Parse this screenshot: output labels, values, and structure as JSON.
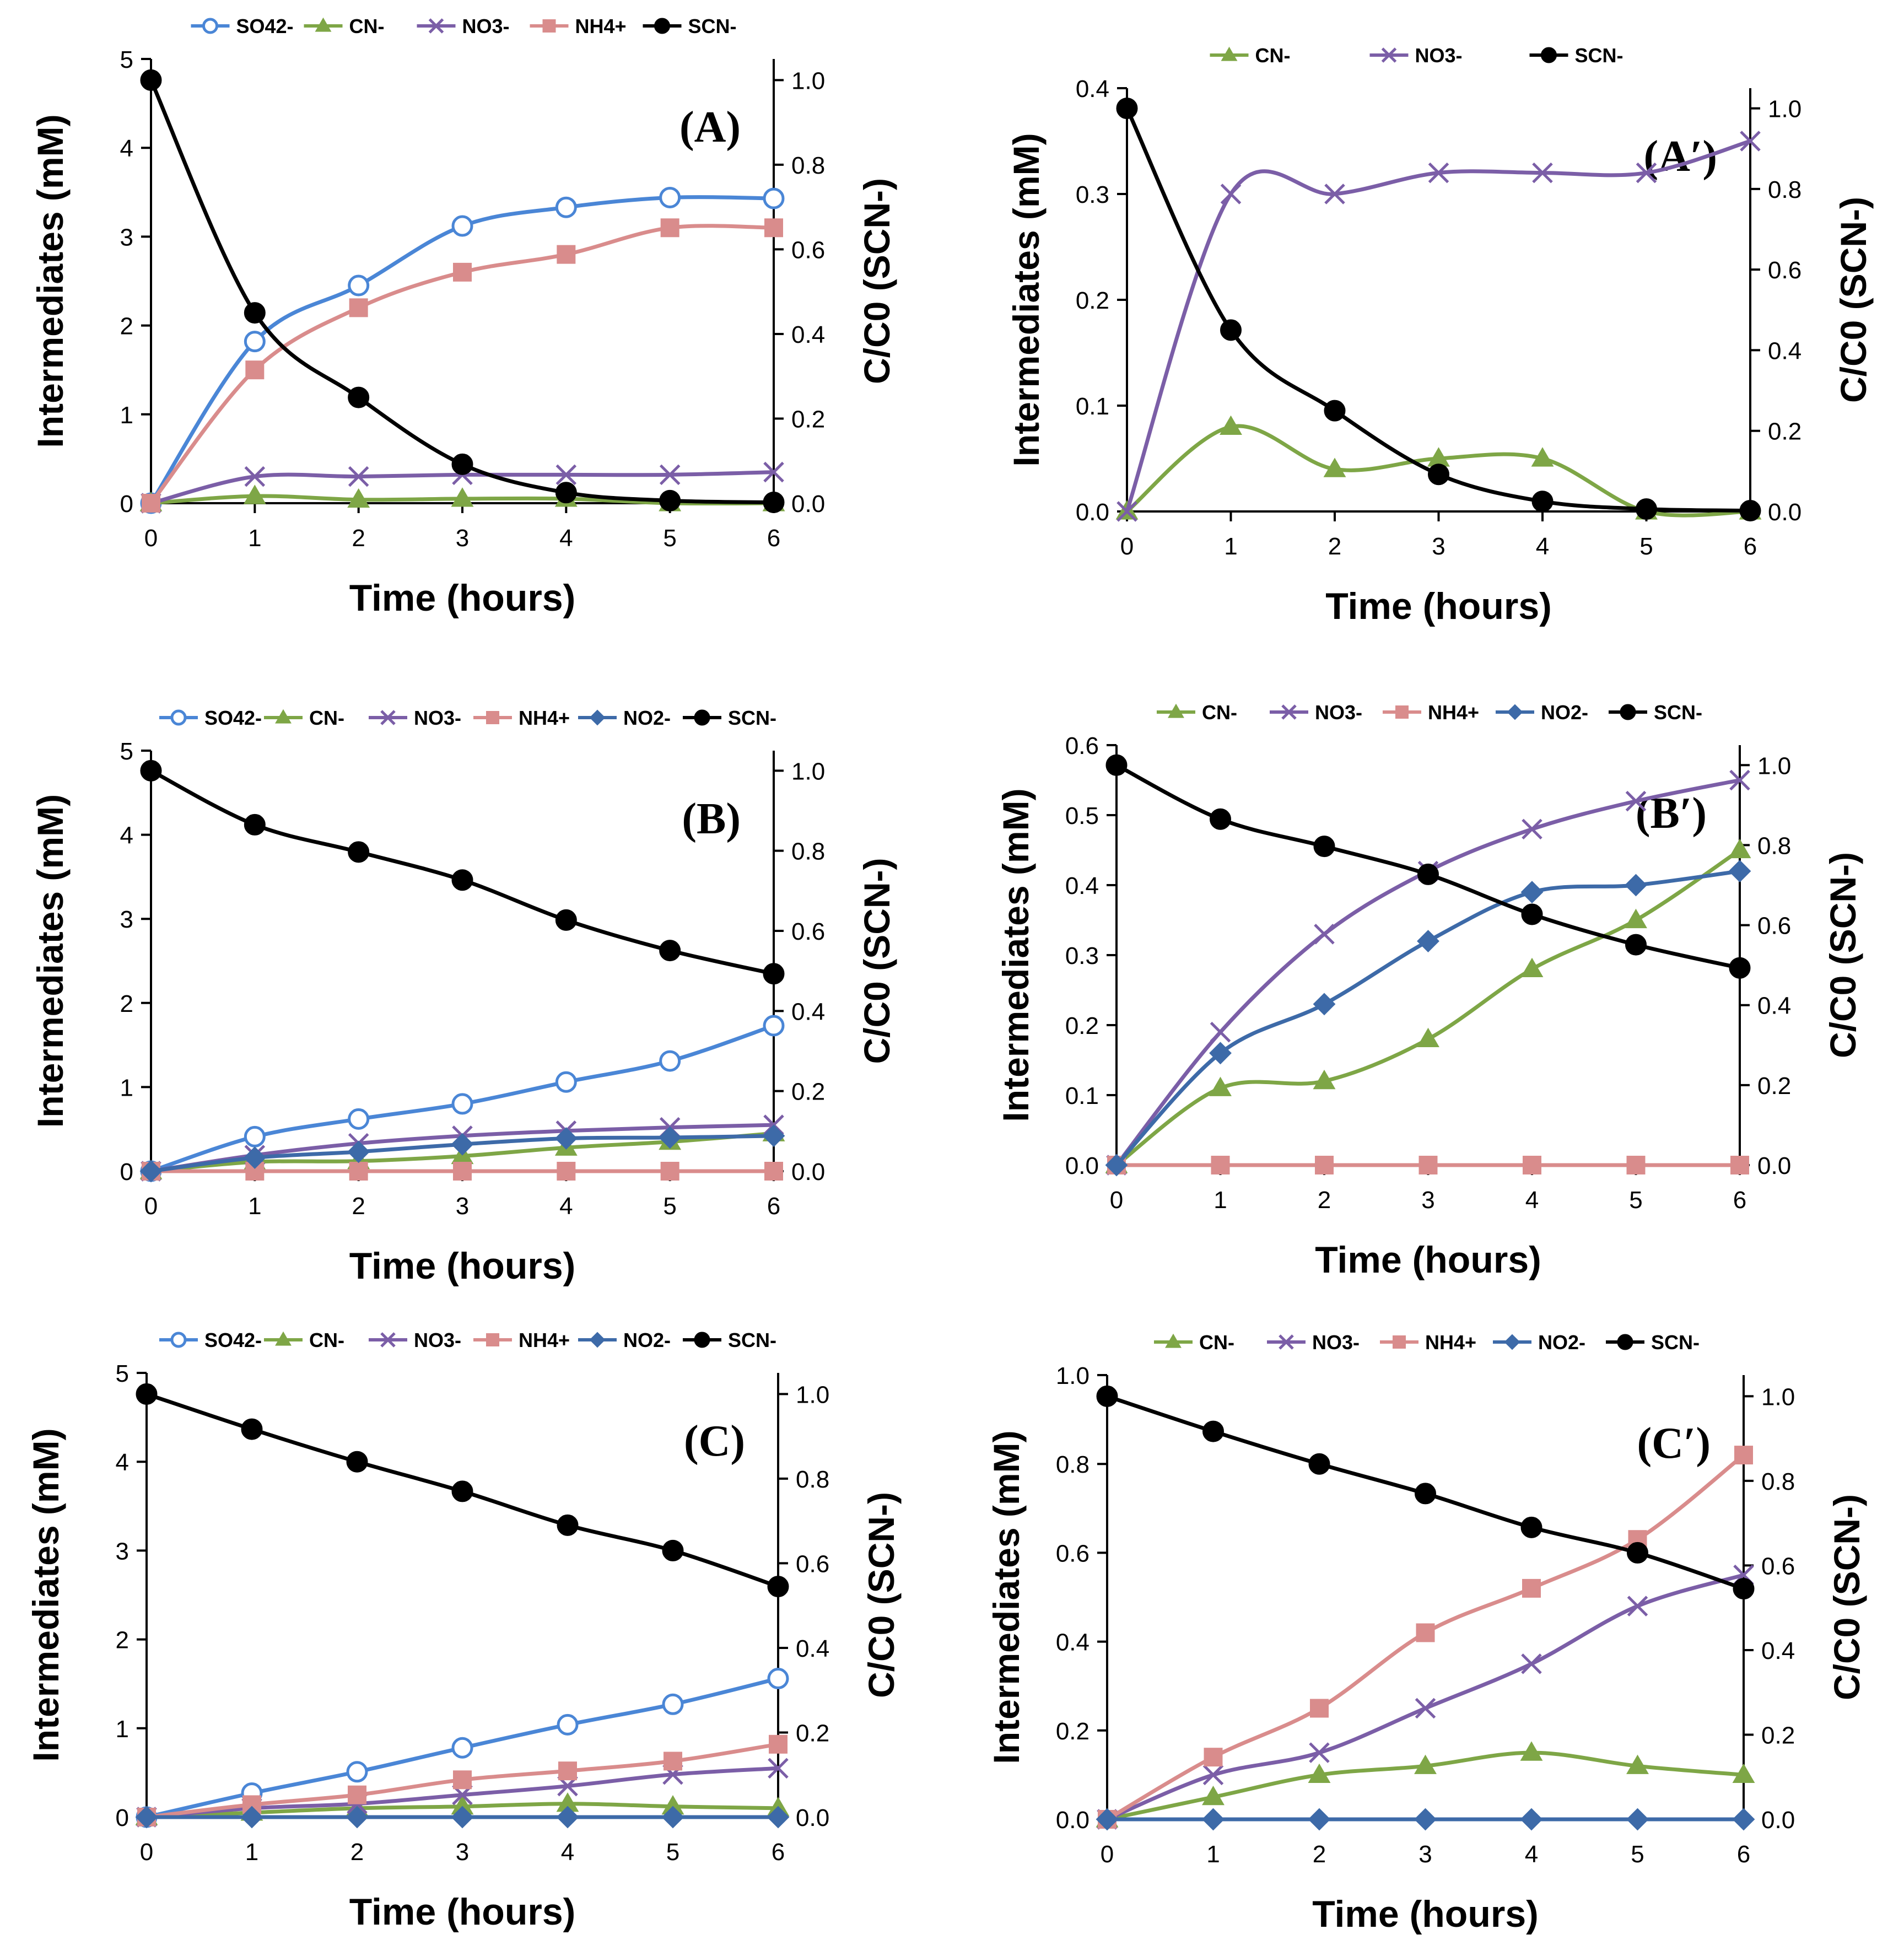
{
  "figure": {
    "caption": ""
  },
  "chart_data": [
    {
      "type": "line",
      "panel_label": "(A)",
      "xlabel": "Time (hours)",
      "ylabel": "Intermediates (mM)",
      "y2label": "C/C0 (SCN-)",
      "x": [
        0,
        1,
        2,
        3,
        4,
        5,
        6
      ],
      "xlim": [
        0,
        6
      ],
      "x_ticks": [
        "0",
        "1",
        "2",
        "3",
        "4",
        "5",
        "6"
      ],
      "ylim": [
        0,
        5
      ],
      "y_ticks": [
        "0",
        "1",
        "2",
        "3",
        "4",
        "5"
      ],
      "y2lim": [
        0,
        1.05
      ],
      "y2_ticks": [
        "0.0",
        "0.2",
        "0.4",
        "0.6",
        "0.8",
        "1.0"
      ],
      "series": [
        {
          "name": "SO42-",
          "axis": "left",
          "color": "#4a86d6",
          "marker": "circle-open",
          "values": [
            0,
            1.82,
            2.45,
            3.12,
            3.33,
            3.44,
            3.43
          ]
        },
        {
          "name": "CN-",
          "axis": "left",
          "color": "#7ea646",
          "marker": "triangle",
          "values": [
            0,
            0.08,
            0.04,
            0.05,
            0.05,
            0,
            0
          ]
        },
        {
          "name": "NO3-",
          "axis": "left",
          "color": "#7b5ea7",
          "marker": "x",
          "values": [
            0,
            0.3,
            0.3,
            0.32,
            0.32,
            0.32,
            0.35
          ]
        },
        {
          "name": "NH4+",
          "axis": "left",
          "color": "#d98c8c",
          "marker": "square",
          "values": [
            0,
            1.5,
            2.2,
            2.6,
            2.8,
            3.1,
            3.1
          ]
        },
        {
          "name": "SCN-",
          "axis": "right",
          "color": "#000000",
          "marker": "circle",
          "values": [
            1.0,
            0.45,
            0.25,
            0.092,
            0.025,
            0.006,
            0.002
          ]
        }
      ]
    },
    {
      "type": "line",
      "panel_label": "(A′)",
      "xlabel": "Time (hours)",
      "ylabel": "Intermediates (mM)",
      "y2label": "C/C0 (SCN-)",
      "x": [
        0,
        1,
        2,
        3,
        4,
        5,
        6
      ],
      "xlim": [
        0,
        6
      ],
      "x_ticks": [
        "0",
        "1",
        "2",
        "3",
        "4",
        "5",
        "6"
      ],
      "ylim": [
        0,
        0.4
      ],
      "y_ticks": [
        "0.0",
        "0.1",
        "0.2",
        "0.3",
        "0.4"
      ],
      "y2lim": [
        0,
        1.05
      ],
      "y2_ticks": [
        "0.0",
        "0.2",
        "0.4",
        "0.6",
        "0.8",
        "1.0"
      ],
      "series": [
        {
          "name": "CN-",
          "axis": "left",
          "color": "#7ea646",
          "marker": "triangle",
          "values": [
            0,
            0.08,
            0.04,
            0.05,
            0.05,
            0,
            0
          ]
        },
        {
          "name": "NO3-",
          "axis": "left",
          "color": "#7b5ea7",
          "marker": "x",
          "values": [
            0,
            0.3,
            0.3,
            0.32,
            0.32,
            0.32,
            0.35
          ]
        },
        {
          "name": "SCN-",
          "axis": "right",
          "color": "#000000",
          "marker": "circle",
          "values": [
            1.0,
            0.45,
            0.25,
            0.092,
            0.025,
            0.006,
            0.002
          ]
        }
      ]
    },
    {
      "type": "line",
      "panel_label": "(B)",
      "xlabel": "Time (hours)",
      "ylabel": "Intermediates (mM)",
      "y2label": "C/C0 (SCN-)",
      "x": [
        0,
        1,
        2,
        3,
        4,
        5,
        6
      ],
      "xlim": [
        0,
        6
      ],
      "x_ticks": [
        "0",
        "1",
        "2",
        "3",
        "4",
        "5",
        "6"
      ],
      "ylim": [
        0,
        5
      ],
      "y_ticks": [
        "0",
        "1",
        "2",
        "3",
        "4",
        "5"
      ],
      "y2lim": [
        0,
        1.05
      ],
      "y2_ticks": [
        "0.0",
        "0.2",
        "0.4",
        "0.6",
        "0.8",
        "1.0"
      ],
      "series": [
        {
          "name": "SO42-",
          "axis": "left",
          "color": "#4a86d6",
          "marker": "circle-open",
          "values": [
            0,
            0.41,
            0.62,
            0.8,
            1.06,
            1.31,
            1.73
          ]
        },
        {
          "name": "CN-",
          "axis": "left",
          "color": "#7ea646",
          "marker": "triangle",
          "values": [
            0,
            0.11,
            0.12,
            0.18,
            0.28,
            0.35,
            0.45
          ]
        },
        {
          "name": "NO3-",
          "axis": "left",
          "color": "#7b5ea7",
          "marker": "x",
          "values": [
            0,
            0.19,
            0.33,
            0.42,
            0.48,
            0.52,
            0.55
          ]
        },
        {
          "name": "NH4+",
          "axis": "left",
          "color": "#d98c8c",
          "marker": "square",
          "values": [
            0,
            0,
            0,
            0,
            0,
            0,
            0
          ]
        },
        {
          "name": "NO2-",
          "axis": "left",
          "color": "#3d6aa8",
          "marker": "diamond",
          "values": [
            0,
            0.16,
            0.23,
            0.32,
            0.39,
            0.4,
            0.42
          ]
        },
        {
          "name": "SCN-",
          "axis": "right",
          "color": "#000000",
          "marker": "circle",
          "values": [
            1.0,
            0.865,
            0.797,
            0.727,
            0.627,
            0.551,
            0.493
          ]
        }
      ]
    },
    {
      "type": "line",
      "panel_label": "(B′)",
      "xlabel": "Time (hours)",
      "ylabel": "Intermediates (mM)",
      "y2label": "C/C0 (SCN-)",
      "x": [
        0,
        1,
        2,
        3,
        4,
        5,
        6
      ],
      "xlim": [
        0,
        6
      ],
      "x_ticks": [
        "0",
        "1",
        "2",
        "3",
        "4",
        "5",
        "6"
      ],
      "ylim": [
        0,
        0.6
      ],
      "y_ticks": [
        "0.0",
        "0.1",
        "0.2",
        "0.3",
        "0.4",
        "0.5",
        "0.6"
      ],
      "y2lim": [
        0,
        1.05
      ],
      "y2_ticks": [
        "0.0",
        "0.2",
        "0.4",
        "0.6",
        "0.8",
        "1.0"
      ],
      "series": [
        {
          "name": "CN-",
          "axis": "left",
          "color": "#7ea646",
          "marker": "triangle",
          "values": [
            0,
            0.11,
            0.12,
            0.18,
            0.28,
            0.35,
            0.45
          ]
        },
        {
          "name": "NO3-",
          "axis": "left",
          "color": "#7b5ea7",
          "marker": "x",
          "values": [
            0,
            0.19,
            0.33,
            0.42,
            0.48,
            0.52,
            0.55
          ]
        },
        {
          "name": "NH4+",
          "axis": "left",
          "color": "#d98c8c",
          "marker": "square",
          "values": [
            0,
            0,
            0,
            0,
            0,
            0,
            0
          ]
        },
        {
          "name": "NO2-",
          "axis": "left",
          "color": "#3d6aa8",
          "marker": "diamond",
          "values": [
            0,
            0.16,
            0.23,
            0.32,
            0.39,
            0.4,
            0.42
          ]
        },
        {
          "name": "SCN-",
          "axis": "right",
          "color": "#000000",
          "marker": "circle",
          "values": [
            1.0,
            0.865,
            0.797,
            0.727,
            0.627,
            0.551,
            0.493
          ]
        }
      ]
    },
    {
      "type": "line",
      "panel_label": "(C)",
      "xlabel": "Time (hours)",
      "ylabel": "Intermediates (mM)",
      "y2label": "C/C0 (SCN-)",
      "x": [
        0,
        1,
        2,
        3,
        4,
        5,
        6
      ],
      "xlim": [
        0,
        6
      ],
      "x_ticks": [
        "0",
        "1",
        "2",
        "3",
        "4",
        "5",
        "6"
      ],
      "ylim": [
        0,
        5
      ],
      "y_ticks": [
        "0",
        "1",
        "2",
        "3",
        "4",
        "5"
      ],
      "y2lim": [
        0,
        1.05
      ],
      "y2_ticks": [
        "0.0",
        "0.2",
        "0.4",
        "0.6",
        "0.8",
        "1.0"
      ],
      "series": [
        {
          "name": "SO42-",
          "axis": "left",
          "color": "#4a86d6",
          "marker": "circle-open",
          "values": [
            0,
            0.27,
            0.51,
            0.78,
            1.04,
            1.27,
            1.56
          ]
        },
        {
          "name": "CN-",
          "axis": "left",
          "color": "#7ea646",
          "marker": "triangle",
          "values": [
            0,
            0.05,
            0.1,
            0.12,
            0.15,
            0.12,
            0.1
          ]
        },
        {
          "name": "NO3-",
          "axis": "left",
          "color": "#7b5ea7",
          "marker": "x",
          "values": [
            0,
            0.1,
            0.15,
            0.25,
            0.35,
            0.48,
            0.55
          ]
        },
        {
          "name": "NH4+",
          "axis": "left",
          "color": "#d98c8c",
          "marker": "square",
          "values": [
            0,
            0.14,
            0.25,
            0.42,
            0.52,
            0.63,
            0.82
          ]
        },
        {
          "name": "NO2-",
          "axis": "left",
          "color": "#3d6aa8",
          "marker": "diamond",
          "values": [
            0,
            0,
            0,
            0,
            0,
            0,
            0
          ]
        },
        {
          "name": "SCN-",
          "axis": "right",
          "color": "#000000",
          "marker": "circle",
          "values": [
            1.0,
            0.917,
            0.84,
            0.77,
            0.69,
            0.63,
            0.545
          ]
        }
      ]
    },
    {
      "type": "line",
      "panel_label": "(C′)",
      "xlabel": "Time (hours)",
      "ylabel": "Intermediates (mM)",
      "y2label": "C/C0 (SCN-)",
      "x": [
        0,
        1,
        2,
        3,
        4,
        5,
        6
      ],
      "xlim": [
        0,
        6
      ],
      "x_ticks": [
        "0",
        "1",
        "2",
        "3",
        "4",
        "5",
        "6"
      ],
      "ylim": [
        0,
        1.0
      ],
      "y_ticks": [
        "0.0",
        "0.2",
        "0.4",
        "0.6",
        "0.8",
        "1.0"
      ],
      "y2lim": [
        0,
        1.05
      ],
      "y2_ticks": [
        "0.0",
        "0.2",
        "0.4",
        "0.6",
        "0.8",
        "1.0"
      ],
      "series": [
        {
          "name": "CN-",
          "axis": "left",
          "color": "#7ea646",
          "marker": "triangle",
          "values": [
            0,
            0.05,
            0.1,
            0.12,
            0.15,
            0.12,
            0.1
          ]
        },
        {
          "name": "NO3-",
          "axis": "left",
          "color": "#7b5ea7",
          "marker": "x",
          "values": [
            0,
            0.1,
            0.15,
            0.25,
            0.35,
            0.48,
            0.55
          ]
        },
        {
          "name": "NH4+",
          "axis": "left",
          "color": "#d98c8c",
          "marker": "square",
          "values": [
            0,
            0.14,
            0.25,
            0.42,
            0.52,
            0.63,
            0.82
          ]
        },
        {
          "name": "NO2-",
          "axis": "left",
          "color": "#3d6aa8",
          "marker": "diamond",
          "values": [
            0,
            0,
            0,
            0,
            0,
            0,
            0
          ]
        },
        {
          "name": "SCN-",
          "axis": "right",
          "color": "#000000",
          "marker": "circle",
          "values": [
            1.0,
            0.917,
            0.84,
            0.77,
            0.69,
            0.63,
            0.545
          ]
        }
      ]
    }
  ]
}
